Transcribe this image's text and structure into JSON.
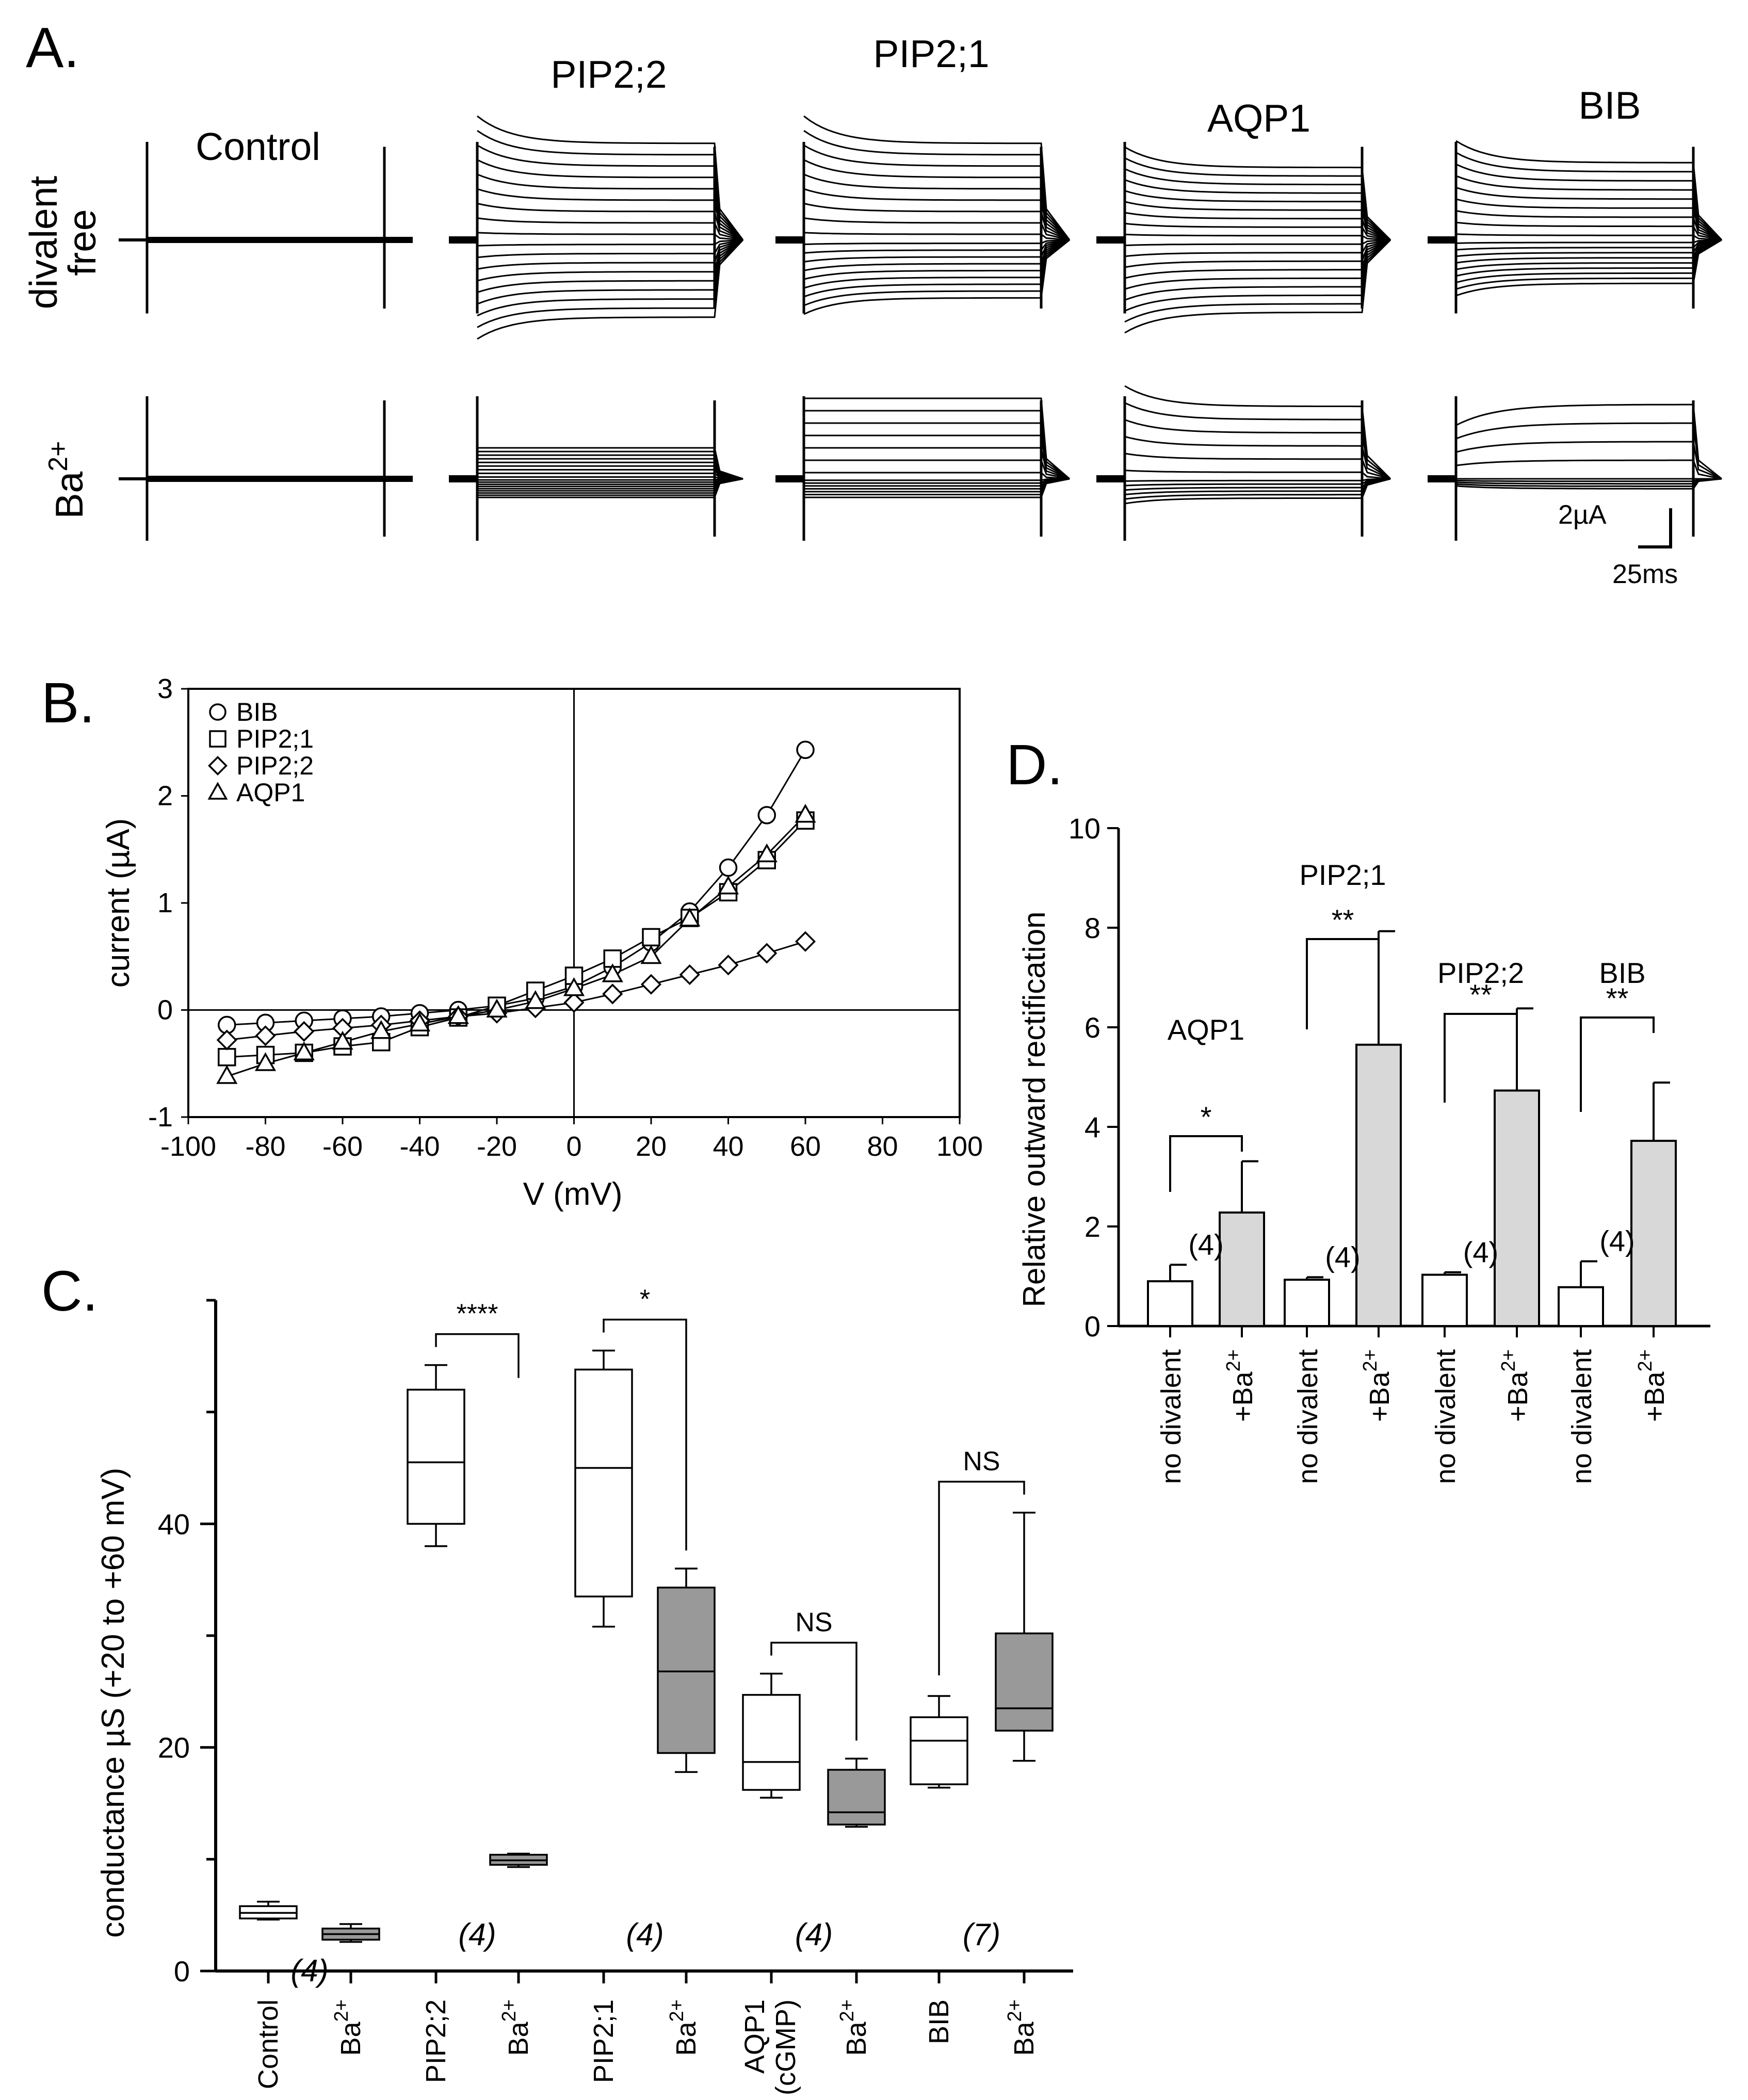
{
  "panel_a": {
    "letter": "A.",
    "columns": [
      "Control",
      "PIP2;2",
      "PIP2;1",
      "AQP1",
      "BIB"
    ],
    "row_divalent_line1": "divalent",
    "row_divalent_line2": "free",
    "row_ba": "Ba",
    "row_ba_sup": "2+",
    "scale_current": "2µA",
    "scale_time": "25ms",
    "traces": {
      "divalent_free": [
        {
          "column": "Control",
          "n_sweeps": 1,
          "max_out": 0.05,
          "max_in": 0.05,
          "decay": false
        },
        {
          "column": "PIP2;2",
          "n_sweeps": 18,
          "max_out": 1.0,
          "max_in": 0.8,
          "decay": true
        },
        {
          "column": "PIP2;1",
          "n_sweeps": 18,
          "max_out": 1.0,
          "max_in": 0.6,
          "decay": true
        },
        {
          "column": "AQP1",
          "n_sweeps": 18,
          "max_out": 0.75,
          "max_in": 0.75,
          "decay": true
        },
        {
          "column": "BIB",
          "n_sweeps": 18,
          "max_out": 0.8,
          "max_in": 0.45,
          "decay": true
        }
      ],
      "ba": [
        {
          "column": "Control",
          "n_sweeps": 1,
          "max_out": 0.05,
          "max_in": 0.05,
          "decay": false
        },
        {
          "column": "PIP2;2",
          "n_sweeps": 18,
          "max_out": 0.25,
          "max_in": 0.15,
          "decay": false
        },
        {
          "column": "PIP2;1",
          "n_sweeps": 14,
          "max_out": 0.65,
          "max_in": 0.15,
          "decay": false
        },
        {
          "column": "AQP1",
          "n_sweeps": 12,
          "max_out": 0.75,
          "max_in": 0.2,
          "decay": true
        },
        {
          "column": "BIB",
          "n_sweeps": 9,
          "max_out": 0.6,
          "max_in": 0.08,
          "rise": true
        }
      ]
    }
  },
  "chart_data": [
    {
      "panel": "B.",
      "type": "line",
      "xlabel": "V (mV)",
      "ylabel": "current  (µA)",
      "xlim": [
        -100,
        100
      ],
      "ylim": [
        -1,
        3
      ],
      "x_ticks": [
        -100,
        -80,
        -60,
        -40,
        -20,
        0,
        20,
        40,
        60,
        80,
        100
      ],
      "y_ticks": [
        -1,
        0,
        1,
        2,
        3
      ],
      "legend_position": "top-left",
      "series": [
        {
          "name": "BIB",
          "marker": "circle",
          "x": [
            -90,
            -80,
            -70,
            -60,
            -50,
            -40,
            -30,
            -20,
            -10,
            0,
            10,
            20,
            30,
            40,
            50,
            60
          ],
          "y": [
            -0.14,
            -0.12,
            -0.1,
            -0.08,
            -0.06,
            -0.03,
            0.0,
            0.04,
            0.11,
            0.22,
            0.4,
            0.63,
            0.92,
            1.33,
            1.82,
            2.43
          ]
        },
        {
          "name": "PIP2;1",
          "marker": "square",
          "x": [
            -90,
            -80,
            -70,
            -60,
            -50,
            -40,
            -30,
            -20,
            -10,
            0,
            10,
            20,
            30,
            40,
            50,
            60
          ],
          "y": [
            -0.44,
            -0.42,
            -0.4,
            -0.34,
            -0.3,
            -0.16,
            -0.07,
            0.04,
            0.18,
            0.32,
            0.48,
            0.68,
            0.86,
            1.1,
            1.4,
            1.77
          ]
        },
        {
          "name": "PIP2;2",
          "marker": "diamond",
          "x": [
            -90,
            -80,
            -70,
            -60,
            -50,
            -40,
            -30,
            -20,
            -10,
            0,
            10,
            20,
            30,
            40,
            50,
            60
          ],
          "y": [
            -0.28,
            -0.24,
            -0.2,
            -0.17,
            -0.14,
            -0.1,
            -0.06,
            -0.03,
            0.02,
            0.07,
            0.15,
            0.24,
            0.33,
            0.42,
            0.53,
            0.64
          ]
        },
        {
          "name": "AQP1",
          "marker": "triangle",
          "x": [
            -90,
            -80,
            -70,
            -60,
            -50,
            -40,
            -30,
            -20,
            -10,
            0,
            10,
            20,
            30,
            40,
            50,
            60
          ],
          "y": [
            -0.62,
            -0.5,
            -0.4,
            -0.3,
            -0.2,
            -0.13,
            -0.06,
            0.0,
            0.08,
            0.2,
            0.33,
            0.5,
            0.85,
            1.15,
            1.45,
            1.82
          ]
        }
      ]
    },
    {
      "panel": "C.",
      "type": "box",
      "ylabel": "conductance  µS (+20 to +60 mV)",
      "ylim": [
        0,
        60
      ],
      "y_ticks": [
        0,
        20,
        40
      ],
      "boxes": [
        {
          "label": "Control",
          "group": "Control",
          "fill": "white",
          "min": 4.6,
          "q1": 4.7,
          "median": 5.2,
          "q3": 5.8,
          "max": 6.2
        },
        {
          "label": "Ba",
          "sup": "2+",
          "group": "Control",
          "fill": "gray",
          "min": 2.6,
          "q1": 2.8,
          "median": 3.3,
          "q3": 3.8,
          "max": 4.2
        },
        {
          "label": "PIP2;2",
          "group": "PIP2;2",
          "fill": "white",
          "min": 38.0,
          "q1": 40.0,
          "median": 45.5,
          "q3": 52.0,
          "max": 54.2
        },
        {
          "label": "Ba",
          "sup": "2+",
          "group": "PIP2;2",
          "fill": "gray",
          "min": 9.3,
          "q1": 9.5,
          "median": 9.9,
          "q3": 10.4,
          "max": 10.5
        },
        {
          "label": "PIP2;1",
          "group": "PIP2;1",
          "fill": "white",
          "min": 30.8,
          "q1": 33.5,
          "median": 45.0,
          "q3": 53.8,
          "max": 55.5
        },
        {
          "label": "Ba",
          "sup": "2+",
          "group": "PIP2;1",
          "fill": "gray",
          "min": 17.8,
          "q1": 19.5,
          "median": 26.8,
          "q3": 34.3,
          "max": 36.0
        },
        {
          "label": "AQP1",
          "label2": "(cGMP)",
          "group": "AQP1",
          "fill": "white",
          "min": 15.5,
          "q1": 16.2,
          "median": 18.7,
          "q3": 24.7,
          "max": 26.6
        },
        {
          "label": "Ba",
          "sup": "2+",
          "group": "AQP1",
          "fill": "gray",
          "min": 12.9,
          "q1": 13.1,
          "median": 14.2,
          "q3": 18.0,
          "max": 19.0
        },
        {
          "label": "BIB",
          "group": "BIB",
          "fill": "white",
          "min": 16.4,
          "q1": 16.7,
          "median": 20.6,
          "q3": 22.7,
          "max": 24.6
        },
        {
          "label": "Ba",
          "sup": "2+",
          "group": "BIB",
          "fill": "gray",
          "min": 18.8,
          "q1": 21.5,
          "median": 23.5,
          "q3": 30.2,
          "max": 41.0
        }
      ],
      "n_labels": [
        {
          "text": "(4)",
          "between": [
            0,
            1
          ]
        },
        {
          "text": "(4)",
          "between": [
            2,
            3
          ]
        },
        {
          "text": "(4)",
          "between": [
            4,
            5
          ]
        },
        {
          "text": "(4)",
          "between": [
            6,
            7
          ]
        },
        {
          "text": "(7)",
          "between": [
            8,
            9
          ]
        }
      ],
      "significance": [
        {
          "label": "****",
          "from": 2,
          "to": 3
        },
        {
          "label": "*",
          "from": 4,
          "to": 5
        },
        {
          "label": "NS",
          "from": 6,
          "to": 7
        },
        {
          "label": "NS",
          "from": 8,
          "to": 9
        }
      ]
    },
    {
      "panel": "D.",
      "type": "bar",
      "ylabel": "Relative outward rectification",
      "ylim": [
        0,
        10
      ],
      "y_ticks": [
        0,
        2,
        4,
        6,
        8,
        10
      ],
      "categories": [
        "no divalent",
        "+Ba",
        "no divalent",
        "+Ba",
        "no divalent",
        "+Ba",
        "no divalent",
        "+Ba"
      ],
      "category_sup": [
        "",
        "2+",
        "",
        "2+",
        "",
        "2+",
        "",
        "2+"
      ],
      "groups": [
        "AQP1",
        "PIP2;1",
        "PIP2;2",
        "BIB"
      ],
      "values": [
        0.9,
        2.28,
        0.93,
        5.65,
        1.03,
        4.73,
        0.78,
        3.72
      ],
      "errors": [
        0.33,
        1.03,
        0.05,
        2.28,
        0.05,
        1.65,
        0.52,
        1.17
      ],
      "fills": [
        "white",
        "gray",
        "white",
        "gray",
        "white",
        "gray",
        "white",
        "gray"
      ],
      "n_labels": [
        "(4)",
        "(4)",
        "(4)",
        "(4)"
      ],
      "significance": [
        "*",
        "**",
        "**",
        "**"
      ]
    }
  ]
}
